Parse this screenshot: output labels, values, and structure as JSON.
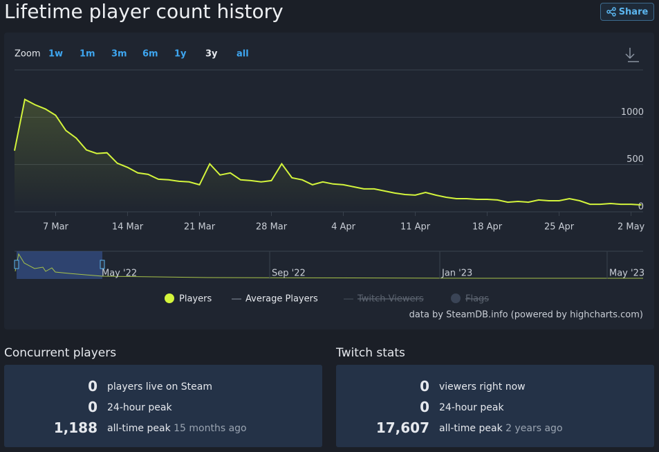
{
  "header": {
    "title": "Lifetime player count history",
    "share": "Share"
  },
  "zoom": {
    "label": "Zoom",
    "options": [
      "1w",
      "1m",
      "3m",
      "6m",
      "1y",
      "3y",
      "all"
    ],
    "selected": "3y"
  },
  "chart_data": {
    "type": "line",
    "categories": [
      null,
      null,
      null,
      null,
      "7 Mar",
      null,
      null,
      null,
      null,
      null,
      null,
      "14 Mar",
      null,
      null,
      null,
      null,
      null,
      null,
      "21 Mar",
      null,
      null,
      null,
      null,
      null,
      null,
      "28 Mar",
      null,
      null,
      null,
      null,
      null,
      null,
      "4 Apr",
      null,
      null,
      null,
      null,
      null,
      null,
      "11 Apr",
      null,
      null,
      null,
      null,
      null,
      null,
      "18 Apr",
      null,
      null,
      null,
      null,
      null,
      null,
      "25 Apr",
      null,
      null,
      null,
      null,
      null,
      null,
      "2 May",
      null
    ],
    "series": [
      {
        "name": "Players",
        "color": "#d4f53c",
        "values": [
          646,
          1188,
          1131,
          1087,
          1021,
          860,
          779,
          654,
          617,
          624,
          514,
          470,
          411,
          396,
          345,
          338,
          323,
          316,
          286,
          507,
          389,
          411,
          338,
          330,
          316,
          330,
          507,
          360,
          338,
          286,
          316,
          294,
          286,
          264,
          242,
          242,
          220,
          198,
          183,
          176,
          205,
          176,
          154,
          139,
          139,
          132,
          132,
          125,
          102,
          110,
          102,
          125,
          117,
          117,
          139,
          117,
          80,
          80,
          88,
          80,
          80,
          73
        ]
      }
    ],
    "ylim": [
      0,
      1500
    ],
    "yticks": [
      0,
      500,
      1000
    ],
    "grid": true,
    "legend_inactive": [
      "Average Players",
      "Twitch Viewers",
      "Flags"
    ],
    "navigator_labels": [
      "May '22",
      "Sep '22",
      "Jan '23",
      "May '23"
    ],
    "credits": "data by SteamDB.info (powered by highcharts.com)"
  },
  "stats": [
    {
      "title": "Concurrent players",
      "rows": [
        {
          "value": "0",
          "label": "players live on Steam"
        },
        {
          "value": "0",
          "label": "24-hour peak"
        },
        {
          "value": "1,188",
          "label": "all-time peak",
          "note": "15 months ago"
        }
      ]
    },
    {
      "title": "Twitch stats",
      "rows": [
        {
          "value": "0",
          "label": "viewers right now"
        },
        {
          "value": "0",
          "label": "24-hour peak"
        },
        {
          "value": "17,607",
          "label": "all-time peak",
          "note": "2 years ago"
        }
      ]
    }
  ]
}
